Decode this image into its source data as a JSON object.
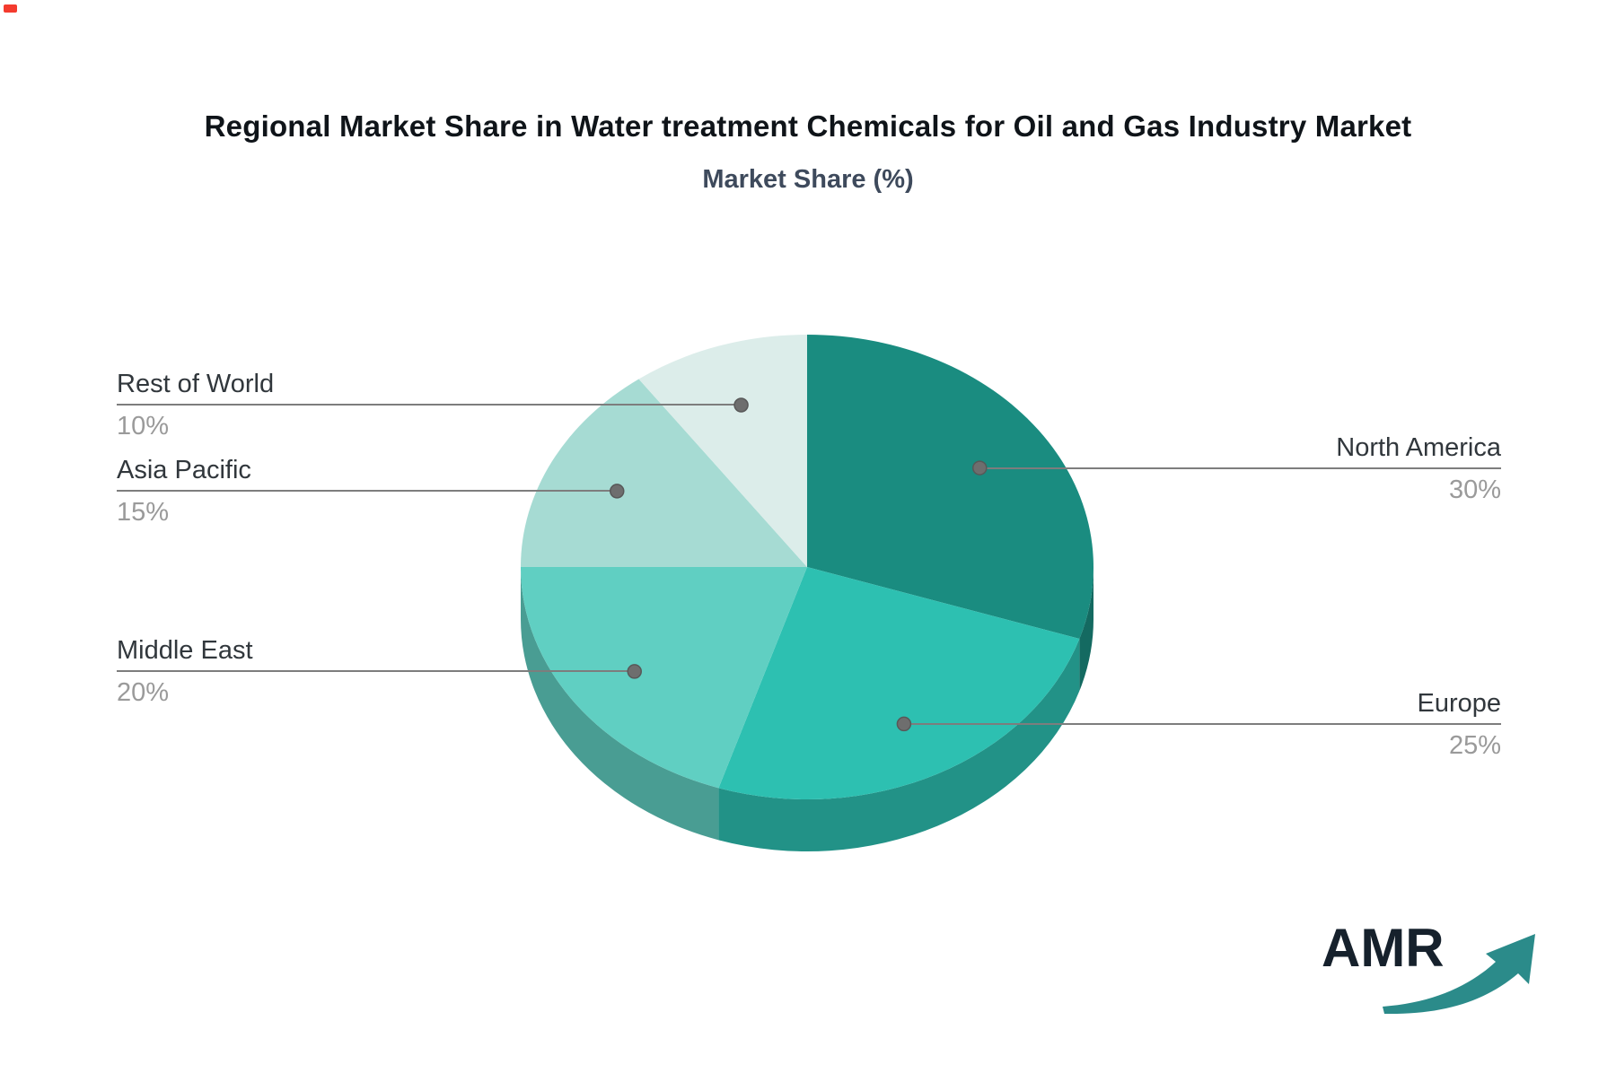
{
  "header": {
    "title": "Regional Market Share in Water treatment Chemicals for Oil and Gas Industry Market",
    "subtitle": "Market Share (%)"
  },
  "logo": {
    "text": "AMR"
  },
  "chart_data": {
    "type": "pie",
    "title": "Regional Market Share in Water treatment Chemicals for Oil and Gas Industry Market",
    "subtitle": "Market Share (%)",
    "unit": "%",
    "style": "3d-pie",
    "direction": "clockwise",
    "start_angle_deg": 0,
    "legend_position": "none",
    "label_style": "callout-lines-with-dots",
    "slices": [
      {
        "label": "North America",
        "value": 30,
        "pct_label": "30%",
        "color": "#1a8c80",
        "side": "right"
      },
      {
        "label": "Europe",
        "value": 25,
        "pct_label": "25%",
        "color": "#2dc0b1",
        "side": "right"
      },
      {
        "label": "Middle East",
        "value": 20,
        "pct_label": "20%",
        "color": "#60cfc2",
        "side": "left"
      },
      {
        "label": "Asia Pacific",
        "value": 15,
        "pct_label": "15%",
        "color": "#a6dbd3",
        "side": "left"
      },
      {
        "label": "Rest of World",
        "value": 10,
        "pct_label": "10%",
        "color": "#dcedea",
        "side": "left"
      }
    ],
    "connector_color": "#7d7d7d",
    "dot_color": "#6e6e6e",
    "label_color": "#31373c",
    "pct_color": "#9a9a9a"
  }
}
